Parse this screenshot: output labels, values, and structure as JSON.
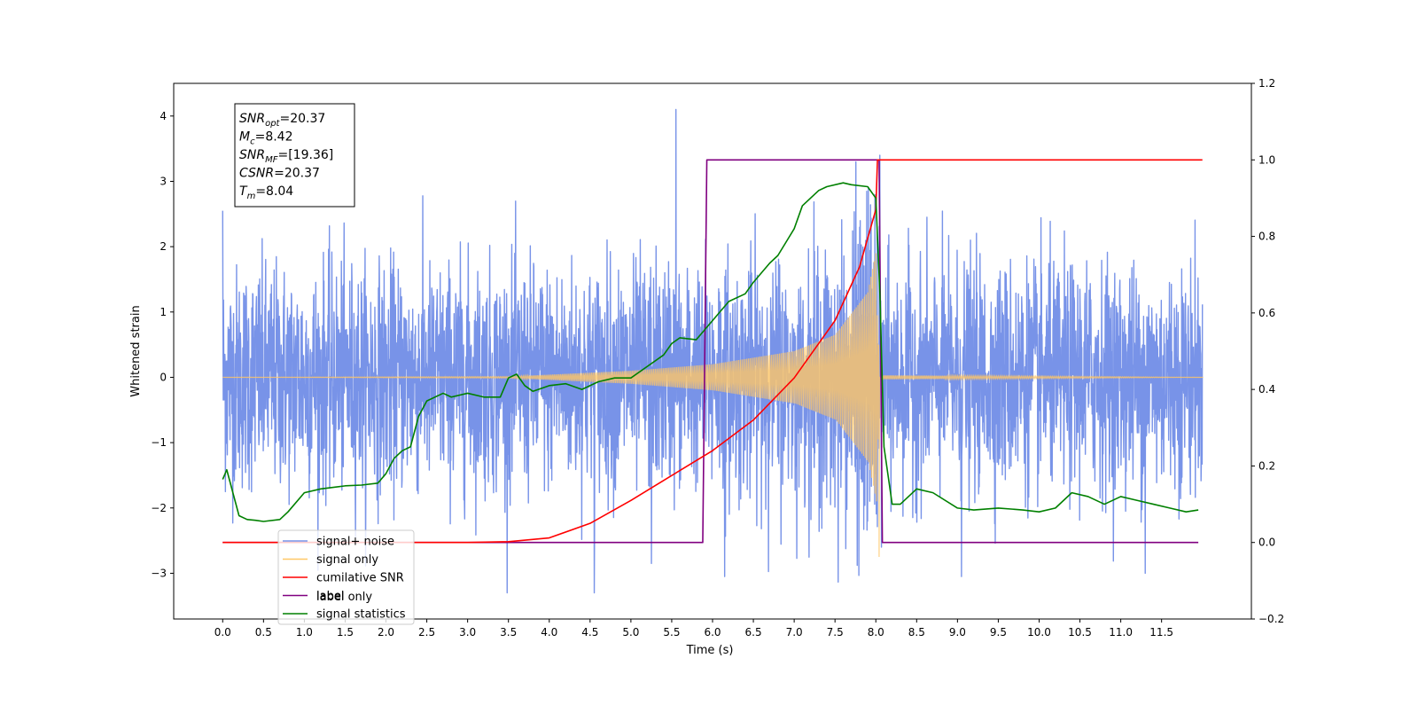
{
  "chart_data": {
    "type": "line",
    "title": "",
    "xlabel": "Time (s)",
    "ylabel": "Whitened strain",
    "xlim": [
      -0.6,
      12.6
    ],
    "ylim": [
      -3.7,
      4.5
    ],
    "ylim_right": [
      -0.2,
      1.2
    ],
    "x_ticks": [
      0.0,
      0.5,
      1.0,
      1.5,
      2.0,
      2.5,
      3.0,
      3.5,
      4.0,
      4.5,
      5.0,
      5.5,
      6.0,
      6.5,
      7.0,
      7.5,
      8.0,
      8.5,
      9.0,
      9.5,
      10.0,
      10.5,
      11.0,
      11.5
    ],
    "x_tick_labels": [
      "0.0",
      "0.5",
      "1.0",
      "1.5",
      "2.0",
      "2.5",
      "3.0",
      "3.5",
      "4.0",
      "4.5",
      "5.0",
      "5.5",
      "6.0",
      "6.5",
      "7.0",
      "7.5",
      "8.0",
      "8.5",
      "9.0",
      "9.5",
      "10.0",
      "10.5",
      "11.0",
      "11.5"
    ],
    "y_ticks_left": [
      -3,
      -2,
      -1,
      0,
      1,
      2,
      3,
      4
    ],
    "y_tick_labels_left": [
      "−3",
      "−2",
      "−1",
      "0",
      "1",
      "2",
      "3",
      "4"
    ],
    "y_ticks_right": [
      -0.2,
      0.0,
      0.2,
      0.4,
      0.6,
      0.8,
      1.0,
      1.2
    ],
    "y_tick_labels_right": [
      "−0.2",
      "0.0",
      "0.2",
      "0.4",
      "0.6",
      "0.8",
      "1.0",
      "1.2"
    ],
    "grid": false,
    "legend_position": "lower-left",
    "annotation": {
      "lines": [
        {
          "base": "SNR",
          "sub": "opt",
          "value": "=20.37"
        },
        {
          "base": "M",
          "sub": "c",
          "value": "=8.42"
        },
        {
          "base": "SNR",
          "sub": "MF",
          "value": "=[19.36]"
        },
        {
          "base": "CSNR",
          "sub": "",
          "value": "=20.37"
        },
        {
          "base": "T",
          "sub": "m",
          "value": "=8.04"
        }
      ]
    },
    "legend": [
      {
        "name": "signal+ noise",
        "color": "#7893e8"
      },
      {
        "name": "signal only",
        "color": "#ffc766"
      },
      {
        "name": "cumilative SNR",
        "color": "#ff0000"
      },
      {
        "name": "label",
        "color": "#800080"
      },
      {
        "name": "signal statistics",
        "color": "#008000"
      }
    ],
    "behind_legend_text": "label only",
    "series": [
      {
        "name": "signal+ noise",
        "axis": "left",
        "color": "#7893e8",
        "x_range": [
          0.0,
          12.0
        ],
        "envelope_min": -3.3,
        "envelope_max": 4.1,
        "peaks": [
          [
            5.55,
            4.1
          ],
          [
            8.05,
            3.4
          ],
          [
            0.0,
            2.55
          ],
          [
            8.07,
            -2.6
          ],
          [
            4.55,
            -3.3
          ],
          [
            5.25,
            -2.85
          ],
          [
            6.15,
            -3.05
          ],
          [
            9.05,
            -3.05
          ],
          [
            11.3,
            -3.0
          ]
        ]
      },
      {
        "name": "signal only",
        "axis": "left",
        "color": "#ffc766",
        "x_range": [
          0.0,
          12.0
        ],
        "amplitude_points": [
          [
            0.0,
            0.0
          ],
          [
            3.5,
            0.01
          ],
          [
            4.0,
            0.04
          ],
          [
            5.0,
            0.1
          ],
          [
            6.0,
            0.2
          ],
          [
            7.0,
            0.4
          ],
          [
            7.5,
            0.65
          ],
          [
            7.9,
            1.3
          ],
          [
            8.0,
            1.9
          ],
          [
            8.04,
            0.0
          ],
          [
            8.1,
            0.03
          ],
          [
            12.0,
            0.0
          ]
        ],
        "dip": [
          8.04,
          -2.75
        ]
      },
      {
        "name": "cumilative SNR",
        "axis": "right",
        "color": "#ff0000",
        "x": [
          0.0,
          3.0,
          3.5,
          4.0,
          4.5,
          5.0,
          5.5,
          6.0,
          6.5,
          7.0,
          7.5,
          7.8,
          8.0,
          8.02,
          8.05,
          12.0
        ],
        "y": [
          0.0,
          0.0,
          0.002,
          0.012,
          0.05,
          0.11,
          0.175,
          0.24,
          0.32,
          0.43,
          0.58,
          0.72,
          0.87,
          1.0,
          1.0,
          1.0
        ]
      },
      {
        "name": "label",
        "axis": "right",
        "color": "#800080",
        "x": [
          0.0,
          5.88,
          5.93,
          8.04,
          8.08,
          11.95
        ],
        "y": [
          0.0,
          0.0,
          1.0,
          1.0,
          0.0,
          0.0
        ]
      },
      {
        "name": "signal statistics",
        "axis": "right",
        "color": "#008000",
        "x": [
          0.0,
          0.05,
          0.1,
          0.2,
          0.3,
          0.4,
          0.5,
          0.7,
          0.8,
          1.0,
          1.2,
          1.5,
          1.7,
          1.9,
          2.0,
          2.1,
          2.2,
          2.3,
          2.4,
          2.5,
          2.7,
          2.8,
          3.0,
          3.2,
          3.4,
          3.5,
          3.6,
          3.7,
          3.8,
          4.0,
          4.2,
          4.4,
          4.6,
          4.8,
          5.0,
          5.2,
          5.4,
          5.5,
          5.6,
          5.8,
          6.0,
          6.2,
          6.4,
          6.5,
          6.7,
          6.8,
          7.0,
          7.1,
          7.3,
          7.4,
          7.6,
          7.7,
          7.9,
          8.0,
          8.05,
          8.1,
          8.2,
          8.3,
          8.5,
          8.7,
          9.0,
          9.2,
          9.5,
          9.8,
          10.0,
          10.2,
          10.4,
          10.6,
          10.8,
          11.0,
          11.2,
          11.4,
          11.6,
          11.8,
          11.95
        ],
        "y": [
          0.165,
          0.19,
          0.15,
          0.07,
          0.06,
          0.058,
          0.055,
          0.06,
          0.08,
          0.13,
          0.14,
          0.148,
          0.15,
          0.155,
          0.18,
          0.22,
          0.24,
          0.25,
          0.33,
          0.37,
          0.39,
          0.38,
          0.39,
          0.38,
          0.38,
          0.43,
          0.44,
          0.41,
          0.395,
          0.41,
          0.415,
          0.4,
          0.42,
          0.43,
          0.43,
          0.46,
          0.49,
          0.52,
          0.535,
          0.53,
          0.58,
          0.63,
          0.65,
          0.68,
          0.73,
          0.75,
          0.82,
          0.88,
          0.92,
          0.93,
          0.94,
          0.935,
          0.93,
          0.9,
          0.65,
          0.25,
          0.1,
          0.1,
          0.14,
          0.13,
          0.09,
          0.085,
          0.09,
          0.085,
          0.08,
          0.09,
          0.13,
          0.12,
          0.1,
          0.12,
          0.11,
          0.1,
          0.09,
          0.08,
          0.085
        ]
      }
    ]
  }
}
